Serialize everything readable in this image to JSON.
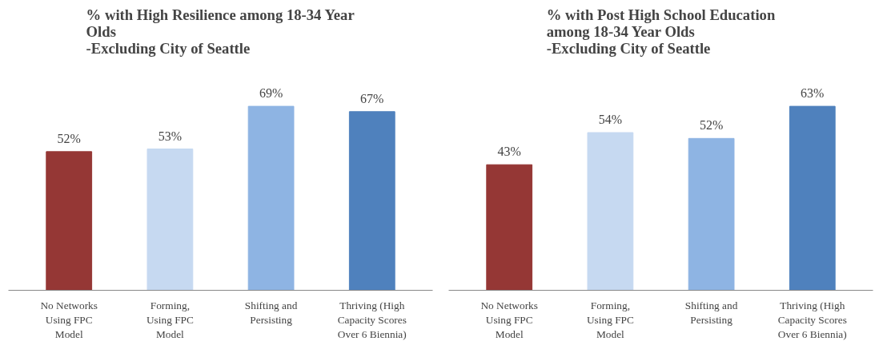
{
  "chart_data": [
    {
      "type": "bar",
      "title": "% with High Resilience among 18-34 Year\nOlds\n-Excluding City of Seattle",
      "categories": [
        "No Networks\nUsing FPC\nModel",
        "Forming,\nUsing FPC\nModel",
        "Shifting and\nPersisting",
        "Thriving (High\nCapacity Scores\nOver 6 Biennia)"
      ],
      "values": [
        52,
        53,
        69,
        67
      ],
      "colors": [
        "#953735",
        "#c6d9f1",
        "#8eb4e3",
        "#4f81bd"
      ],
      "value_labels": [
        "52%",
        "53%",
        "69%",
        "67%"
      ]
    },
    {
      "type": "bar",
      "title": "% with Post High School Education\namong  18-34 Year Olds\n-Excluding City of Seattle",
      "categories": [
        "No Networks\nUsing FPC\nModel",
        "Forming,\nUsing FPC\nModel",
        "Shifting and\nPersisting",
        "Thriving (High\nCapacity Scores\nOver 6 Biennia)"
      ],
      "values": [
        43,
        54,
        52,
        63
      ],
      "colors": [
        "#953735",
        "#c6d9f1",
        "#8eb4e3",
        "#4f81bd"
      ],
      "value_labels": [
        "43%",
        "54%",
        "52%",
        "63%"
      ]
    }
  ]
}
